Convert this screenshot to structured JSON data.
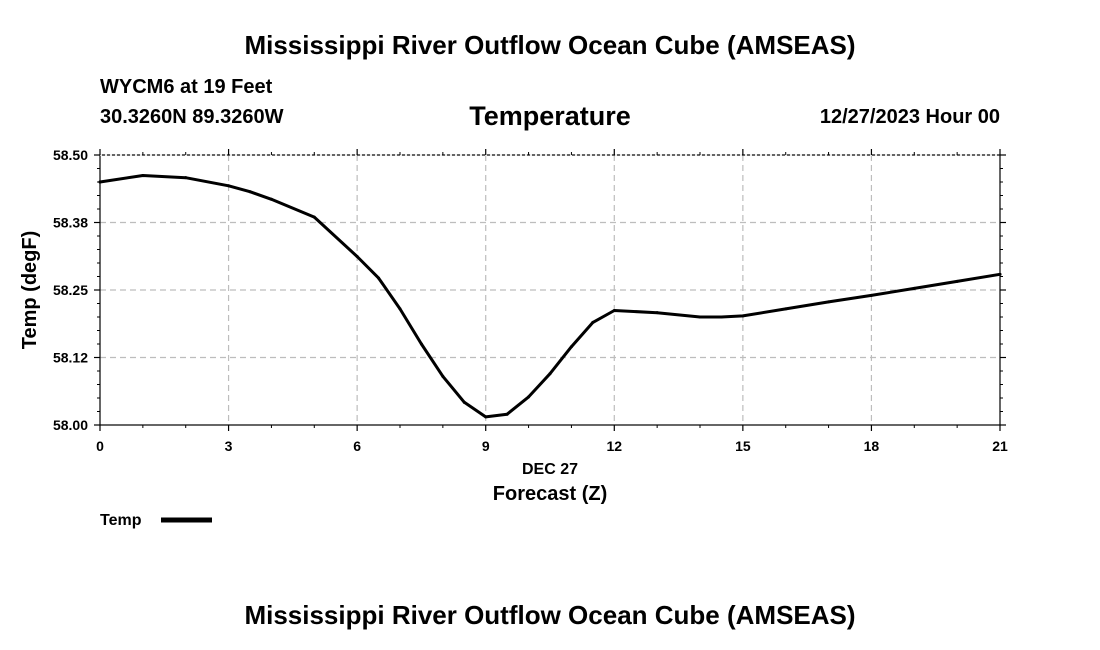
{
  "header": {
    "title": "Mississippi River Outflow Ocean Cube (AMSEAS)",
    "station": "WYCM6 at 19 Feet",
    "coords": "30.3260N  89.3260W",
    "variable": "Temperature",
    "datetime": "12/27/2023 Hour 00"
  },
  "footer": {
    "title": "Mississippi River Outflow Ocean Cube (AMSEAS)"
  },
  "legend": {
    "label": "Temp"
  },
  "chart_data": {
    "type": "line",
    "ylabel": "Temp (degF)",
    "xlabel": "Forecast (Z)",
    "xlabel_date": "DEC 27",
    "xlim": [
      0,
      21
    ],
    "ylim": [
      58.0,
      58.5
    ],
    "x_ticks": [
      0,
      3,
      6,
      9,
      12,
      15,
      18,
      21
    ],
    "y_ticks": [
      {
        "value": 58.0,
        "label": "58.00"
      },
      {
        "value": 58.125,
        "label": "58.12"
      },
      {
        "value": 58.25,
        "label": "58.25"
      },
      {
        "value": 58.375,
        "label": "58.38"
      },
      {
        "value": 58.5,
        "label": "58.50"
      }
    ],
    "grid": true,
    "legend_position": "bottom-left",
    "series": [
      {
        "name": "Temp",
        "color": "#000000",
        "x": [
          0,
          1,
          2,
          3,
          3.5,
          4,
          5,
          6,
          6.5,
          7,
          7.5,
          8,
          8.5,
          9,
          9.5,
          10,
          10.5,
          11,
          11.5,
          12,
          13,
          14,
          14.5,
          15,
          16,
          17,
          18,
          19,
          20,
          21
        ],
        "y": [
          58.45,
          58.462,
          58.458,
          58.443,
          58.432,
          58.418,
          58.385,
          58.312,
          58.272,
          58.215,
          58.15,
          58.09,
          58.042,
          58.015,
          58.02,
          58.052,
          58.095,
          58.145,
          58.19,
          58.212,
          58.208,
          58.2,
          58.2,
          58.202,
          58.215,
          58.228,
          58.24,
          58.253,
          58.266,
          58.279
        ]
      }
    ]
  }
}
